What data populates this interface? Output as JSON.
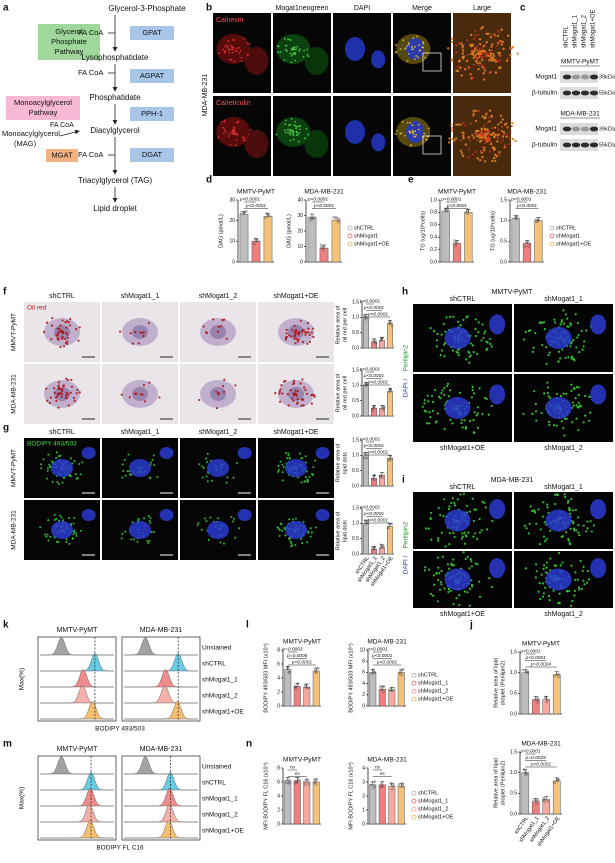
{
  "pathway": {
    "label": "a",
    "glycerol_box": [
      "Glycerol",
      "Phosphate",
      "Pathway"
    ],
    "monoacyl_box": [
      "Monoacylglycerol",
      "Pathway"
    ],
    "g3p": "Glycerol-3-Phosphate",
    "gpat": "GPAT",
    "fa1": "FA CoA",
    "lyso": "Lysophosphatidate",
    "agpat": "AGPAT",
    "fa2": "FA CoA",
    "pa": "Phosphatidate",
    "pph": "PPH-1",
    "fa3": "FA CoA",
    "mag": [
      "Monoacylglycerol",
      "(MAG)"
    ],
    "mgat": "MGAT",
    "dag": "Diacylglycerol",
    "fa4": "FA CoA",
    "dgat": "DGAT",
    "tag": "Triacylglycerol (TAG)",
    "ld": "Lipid droplet"
  },
  "panel_b": {
    "label": "b",
    "columns": [
      "Mogat1neogreen",
      "DAPI",
      "Merge",
      "Large"
    ],
    "row_labels": [
      "Calnexin",
      "Calreticulin"
    ],
    "side": "MDA-MB-231"
  },
  "panel_c": {
    "label": "c",
    "lanes": [
      "shCTRL",
      "shMogat1_1",
      "shMogat1_2",
      "shMogat1+OE"
    ],
    "blots": [
      {
        "cell": "MMTV-PyMT",
        "rows": [
          {
            "name": "Mogat1",
            "size": "39kDa"
          },
          {
            "name": "β-tubulin",
            "size": "55kDa"
          }
        ]
      },
      {
        "cell": "MDA-MB-231",
        "rows": [
          {
            "name": "Mogat1",
            "size": "39kDa"
          },
          {
            "name": "β-tubulin",
            "size": "55kDa"
          }
        ]
      }
    ]
  },
  "panel_labels": {
    "d": "d",
    "e": "e",
    "l": "l",
    "n": "n",
    "j": "j"
  },
  "panel_f": {
    "label": "f",
    "stain": "Oil red",
    "columns": [
      "shCTRL",
      "shMogat1_1",
      "shMogat1_2",
      "shMogat1+OE"
    ],
    "rows": [
      "MMVT-PyMT",
      "MDA-MB-231"
    ]
  },
  "panel_g": {
    "label": "g",
    "stain": "BODIPY 493/503",
    "columns": [
      "shCTRL",
      "shMogat1_1",
      "shMogat1_2",
      "shMogat1+OE"
    ],
    "rows": [
      "MMVT-PyMT",
      "MDA-MB-231"
    ]
  },
  "panel_h": {
    "label": "h",
    "title": "MMTV-PyMT",
    "top": [
      "shCTRL",
      "shMogat1_1"
    ],
    "bottom": [
      "shMogat1+OE",
      "shMogat1_2"
    ],
    "stain": [
      "DAPI /",
      "Perilipin2"
    ]
  },
  "panel_i": {
    "label": "i",
    "title": "MDA-MB-231",
    "top": [
      "shCTRL",
      "shMogat1_1"
    ],
    "bottom": [
      "shMogat1+OE",
      "shMogat1_2"
    ],
    "stain": [
      "DAPI /",
      "Perilipin2"
    ]
  },
  "panel_k": {
    "label": "k",
    "titles": [
      "MMTV-PyMT",
      "MDA-MB-231"
    ],
    "rows": [
      "Unstained",
      "shCTRL",
      "shMogat1_1",
      "shMogat1_2",
      "shMogat1+OE"
    ],
    "ylabel": "Max(%)",
    "xlabel": "BODIPY 493/503"
  },
  "panel_m": {
    "label": "m",
    "titles": [
      "MMTV-PyMT",
      "MDA-MB-231"
    ],
    "rows": [
      "Unstained",
      "shCTRL",
      "shMogat1_1",
      "shMogat1_2",
      "shMogat1+OE"
    ],
    "ylabel": "Max(%)",
    "xlabel": "BODIPY FL C16"
  },
  "chart_data": [
    {
      "type": "bar",
      "title": "MMTV-PyMT",
      "ylabel": [
        "DAG (pmol/L)"
      ],
      "categories": [
        null,
        null,
        null
      ],
      "values": [
        23,
        10,
        22
      ],
      "colors": [
        "#bdbdbd",
        "#ef7f7f",
        "#f6c27a"
      ],
      "ylim": [
        0,
        30
      ],
      "yticks": [
        0,
        10,
        20,
        30
      ],
      "annotations": [
        "p<0.0001",
        "p<0.0001"
      ]
    },
    {
      "type": "bar",
      "title": "MDA-MB-231",
      "ylabel": [
        "DAG (pmol/L)"
      ],
      "categories": [
        "shCTRL",
        "shMogat1",
        "shMogat1+OE"
      ],
      "category_display": "legend",
      "values": [
        29,
        9,
        27
      ],
      "colors": [
        "#bdbdbd",
        "#ef7f7f",
        "#f6c27a"
      ],
      "ylim": [
        0,
        40
      ],
      "yticks": [
        0,
        10,
        20,
        30,
        40
      ],
      "annotations": [
        "p<0.0001",
        "p<0.0001"
      ]
    },
    {
      "type": "bar",
      "title": "MMTV-PyMT",
      "ylabel": [
        "TG (ug/10⁶cells)"
      ],
      "categories": [
        null,
        null,
        null
      ],
      "values": [
        0.82,
        0.3,
        0.8
      ],
      "colors": [
        "#bdbdbd",
        "#ef7f7f",
        "#f6c27a"
      ],
      "ylim": [
        0,
        1
      ],
      "yticks": [
        {
          "value": 0,
          "label": "0.0"
        },
        0.2,
        0.4,
        0.6,
        0.8,
        {
          "value": 1,
          "label": "1.0"
        }
      ],
      "annotations": [
        "p<0.0001",
        "p<0.0001"
      ]
    },
    {
      "type": "bar",
      "title": "MDA-MB-231",
      "ylabel": [
        "TG (ug/10⁶cells)"
      ],
      "categories": [
        "shCTRL",
        "shMogat1",
        "shMogat1+OE"
      ],
      "category_display": "legend",
      "values": [
        1.05,
        0.45,
        1.0
      ],
      "colors": [
        "#bdbdbd",
        "#ef7f7f",
        "#f6c27a"
      ],
      "ylim": [
        0,
        1.5
      ],
      "yticks": [
        {
          "value": 0,
          "label": "0.0"
        },
        0.5,
        {
          "value": 1,
          "label": "1.0"
        },
        1.5
      ],
      "annotations": [
        "p<0.0001",
        "p<0.0001"
      ]
    },
    {
      "type": "bar",
      "ylabel": [
        "Relative area of",
        "oil red per cell"
      ],
      "categories": [
        null,
        null,
        null,
        null
      ],
      "values": [
        1.0,
        0.2,
        0.25,
        0.8
      ],
      "colors": [
        "#bdbdbd",
        "#ef7f7f",
        "#f5a9a0",
        "#f6c27a"
      ],
      "ylim": [
        0,
        1.5
      ],
      "yticks": [
        {
          "value": 0,
          "label": "0.0"
        },
        0.5,
        {
          "value": 1,
          "label": "1.0"
        },
        1.5
      ],
      "annotations": [
        "p<0.0001",
        "p<0.0001",
        "p<0.0001"
      ]
    },
    {
      "type": "bar",
      "ylabel": [
        "Relative area of",
        "oil red per cell"
      ],
      "categories": [
        null,
        null,
        null,
        null
      ],
      "values": [
        1.0,
        0.25,
        0.25,
        0.8
      ],
      "colors": [
        "#bdbdbd",
        "#ef7f7f",
        "#f5a9a0",
        "#f6c27a"
      ],
      "ylim": [
        0,
        1.5
      ],
      "yticks": [
        {
          "value": 0,
          "label": "0.0"
        },
        0.5,
        {
          "value": 1,
          "label": "1.0"
        },
        1.5
      ],
      "annotations": [
        "p<0.0001",
        "p<0.0001",
        "p<0.0001"
      ]
    },
    {
      "type": "bar",
      "ylabel": [
        "Relative area of",
        "lipid dots"
      ],
      "categories": [
        null,
        null,
        null,
        null
      ],
      "values": [
        1.0,
        0.25,
        0.35,
        0.9
      ],
      "colors": [
        "#bdbdbd",
        "#ef7f7f",
        "#f5a9a0",
        "#f6c27a"
      ],
      "ylim": [
        0,
        1.5
      ],
      "yticks": [
        {
          "value": 0,
          "label": "0.0"
        },
        0.5,
        {
          "value": 1,
          "label": "1.0"
        },
        1.5
      ],
      "annotations": [
        "p<0.0001",
        "p<0.0001",
        "p<0.0001"
      ]
    },
    {
      "type": "bar",
      "ylabel": [
        "Relative area of",
        "lipid dots"
      ],
      "categories": [
        "shCTRL",
        "shMogat1_1",
        "shMogat1_2",
        "shMogat1+OE"
      ],
      "category_display": "rotated",
      "values": [
        1.0,
        0.15,
        0.2,
        0.9
      ],
      "colors": [
        "#bdbdbd",
        "#ef7f7f",
        "#f5a9a0",
        "#f6c27a"
      ],
      "ylim": [
        0,
        1.5
      ],
      "yticks": [
        {
          "value": 0,
          "label": "0.0"
        },
        0.5,
        {
          "value": 1,
          "label": "1.0"
        },
        1.5
      ],
      "annotations": [
        "p<0.0001",
        "p<0.0001",
        "p<0.0001"
      ]
    },
    {
      "type": "bar",
      "title": "MMTV-PyMT",
      "ylabel": [
        "Relative area of lipid",
        "droplet (Perilipin2)"
      ],
      "categories": [
        null,
        null,
        null,
        null
      ],
      "values": [
        1.0,
        0.35,
        0.35,
        0.95
      ],
      "colors": [
        "#bdbdbd",
        "#ef7f7f",
        "#f5a9a0",
        "#f6c27a"
      ],
      "ylim": [
        0,
        1.5
      ],
      "yticks": [
        {
          "value": 0,
          "label": "0.0"
        },
        0.5,
        {
          "value": 1,
          "label": "1.0"
        },
        1.5
      ],
      "annotations": [
        "p<0.0001",
        "p<0.0001",
        "p=0.0004"
      ]
    },
    {
      "type": "bar",
      "title": "MDA-MB-231",
      "ylabel": [
        "Relative area of lipid",
        "droplet (Perilipin2)"
      ],
      "categories": [
        "shCTRL",
        "shMogat1_1",
        "shMogat1_2",
        "shMogat1+OE"
      ],
      "category_display": "rotated",
      "values": [
        1.0,
        0.3,
        0.35,
        0.8
      ],
      "colors": [
        "#bdbdbd",
        "#ef7f7f",
        "#f5a9a0",
        "#f6c27a"
      ],
      "ylim": [
        0,
        1.5
      ],
      "yticks": [
        {
          "value": 0,
          "label": "0.0"
        },
        0.5,
        {
          "value": 1,
          "label": "1.0"
        },
        1.5
      ],
      "annotations": [
        "p<0.0001",
        "p=0.0025",
        "p<0.0001"
      ]
    },
    {
      "type": "bar",
      "title": "MMTV-PyMT",
      "ylabel": [
        "BODIPY 493/503 MFI (x10⁴)"
      ],
      "categories": [
        null,
        null,
        null,
        null
      ],
      "values": [
        5.2,
        2.8,
        2.7,
        5.0
      ],
      "colors": [
        "#bdbdbd",
        "#ef7f7f",
        "#f5a9a0",
        "#f6c27a"
      ],
      "ylim": [
        0,
        8
      ],
      "yticks": [
        0,
        2,
        4,
        6,
        8
      ],
      "annotations": [
        "p=0.0003",
        "p=0.0006",
        "p<0.0001"
      ]
    },
    {
      "type": "bar",
      "title": "MDA-MB-231",
      "ylabel": [
        "BODIPY 493/503 MFI (x10⁴)"
      ],
      "categories": [
        "shCTRL",
        "shMogat1_1",
        "shMogat1_2",
        "shMogat1+OE"
      ],
      "category_display": "legend",
      "values": [
        6.0,
        3.0,
        2.8,
        6.0
      ],
      "colors": [
        "#bdbdbd",
        "#ef7f7f",
        "#f5a9a0",
        "#f6c27a"
      ],
      "ylim": [
        0,
        10
      ],
      "yticks": [
        0,
        2,
        4,
        6,
        8,
        10
      ],
      "annotations": [
        "p<0.0001",
        "p<0.0001",
        "p<0.0001"
      ]
    },
    {
      "type": "bar",
      "title": "MMTV-PyMT",
      "ylabel": [
        "MFI BODIPY FL C16 (x10⁴)"
      ],
      "categories": [
        null,
        null,
        null,
        null
      ],
      "values": [
        6.2,
        6.2,
        6.0,
        6.0
      ],
      "colors": [
        "#bdbdbd",
        "#ef7f7f",
        "#f5a9a0",
        "#f6c27a"
      ],
      "ylim": [
        0,
        8
      ],
      "yticks": [
        0,
        2,
        4,
        6,
        8
      ],
      "annotations": [
        "ns",
        "ns"
      ]
    },
    {
      "type": "bar",
      "title": "MDA-MB-231",
      "ylabel": [
        "MFI BODIPY FL C16 (x10⁴)"
      ],
      "categories": [
        "shCTRL",
        "shMogat1_1",
        "shMogat1_2",
        "shMogat1+OE"
      ],
      "category_display": "legend",
      "values": [
        2.8,
        2.8,
        2.7,
        2.7
      ],
      "colors": [
        "#bdbdbd",
        "#ef7f7f",
        "#f5a9a0",
        "#f6c27a"
      ],
      "ylim": [
        0,
        4
      ],
      "yticks": [
        0,
        1,
        2,
        3,
        4
      ],
      "annotations": [
        "ns",
        "ns"
      ]
    }
  ]
}
